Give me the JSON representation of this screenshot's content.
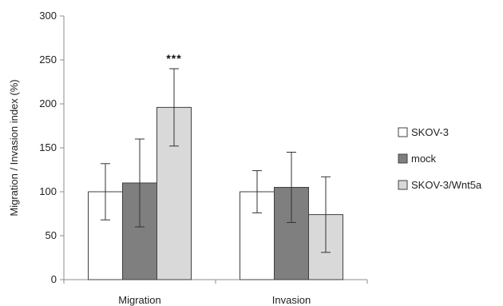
{
  "chart_data": {
    "type": "bar",
    "categories": [
      "Migration",
      "Invasion"
    ],
    "series": [
      {
        "name": "SKOV-3",
        "color": "#ffffff",
        "values": [
          100,
          100
        ],
        "error": [
          32,
          24
        ]
      },
      {
        "name": "mock",
        "color": "#7f7f7f",
        "values": [
          110,
          105
        ],
        "error": [
          50,
          40
        ]
      },
      {
        "name": "SKOV-3/Wnt5a",
        "color": "#d9d9d9",
        "values": [
          196,
          74
        ],
        "error": [
          44,
          43
        ]
      }
    ],
    "ylabel": "Migration / Invasion index (%)",
    "xlabel": "",
    "ylim": [
      0,
      300
    ],
    "yticks": [
      0,
      50,
      100,
      150,
      200,
      250,
      300
    ],
    "grid": false,
    "legend_position": "right",
    "annotations": [
      {
        "text": "***",
        "category": "Migration",
        "series": "SKOV-3/Wnt5a"
      }
    ]
  }
}
